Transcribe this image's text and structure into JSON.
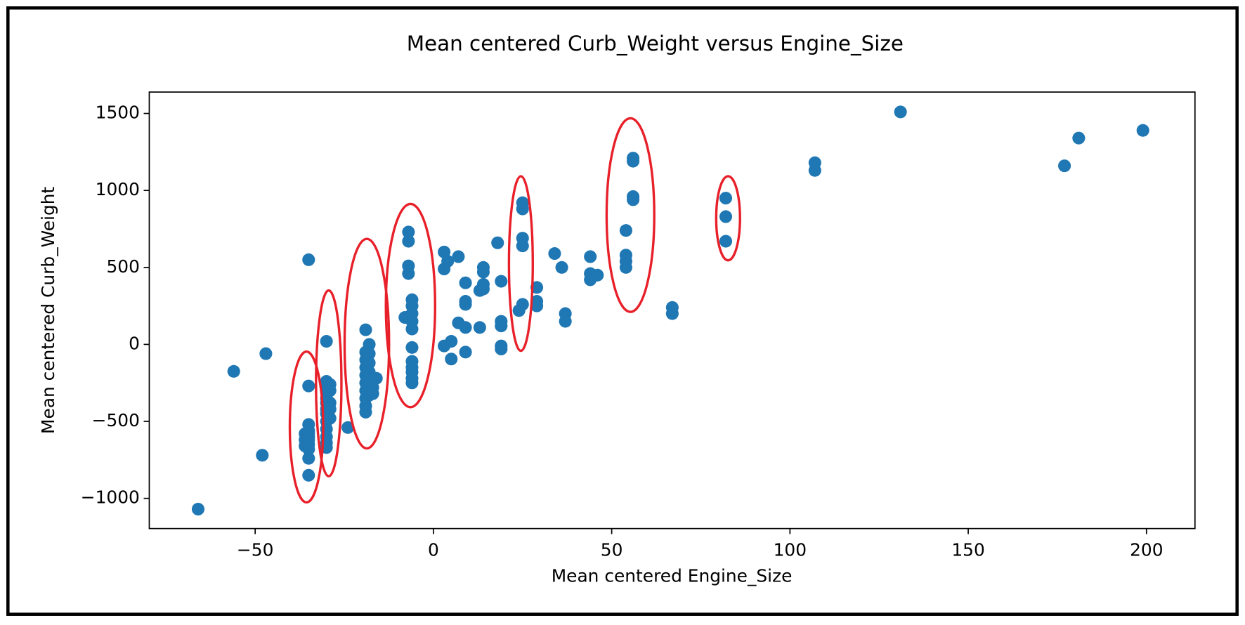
{
  "chart_data": {
    "type": "scatter",
    "title": "Mean centered Curb_Weight versus Engine_Size",
    "x_label": "Mean centered Engine_Size",
    "y_label": "Mean centered Curb_Weight",
    "color": "#1f77b4",
    "x": [
      -66,
      -56,
      -47,
      -48,
      -35,
      -35,
      -35,
      -35,
      -35,
      -35,
      -35,
      -35,
      -35,
      -35,
      -35,
      -36,
      -36,
      -36,
      -30,
      -30,
      -30,
      -30,
      -30,
      -30,
      -30,
      -30,
      -30,
      -30,
      -30,
      -30,
      -30,
      -30,
      -29,
      -29,
      -29,
      -29,
      -29,
      -24,
      -19,
      -19,
      -19,
      -19,
      -19,
      -19,
      -19,
      -19,
      -19,
      -19,
      -18,
      -18,
      -18,
      -18,
      -18,
      -18,
      -18,
      -17,
      -17,
      -17,
      -16,
      -7,
      -7,
      -7,
      -7,
      -8,
      -6,
      -6,
      -6,
      -6,
      -6,
      -6,
      -6,
      -6,
      -6,
      -6,
      -6,
      3,
      3,
      4,
      3,
      5,
      5,
      7,
      7,
      9,
      9,
      9,
      9,
      9,
      13,
      13,
      14,
      14,
      14,
      14,
      18,
      19,
      19,
      19,
      19,
      19,
      24,
      25,
      25,
      25,
      25,
      25,
      29,
      29,
      29,
      34,
      36,
      37,
      37,
      44,
      44,
      44,
      46,
      54,
      54,
      54,
      54,
      56,
      56,
      56,
      56,
      67,
      67,
      82,
      82,
      82,
      107,
      107,
      131,
      177,
      181,
      199
    ],
    "values": [
      -1070,
      -175,
      -60,
      -720,
      550,
      -270,
      -520,
      -560,
      -580,
      -600,
      -620,
      -650,
      -680,
      -740,
      -850,
      -580,
      -620,
      -660,
      20,
      -240,
      -260,
      -280,
      -300,
      -350,
      -380,
      -420,
      -450,
      -500,
      -550,
      -600,
      -640,
      -670,
      -260,
      -300,
      -380,
      -420,
      -480,
      -540,
      95,
      -50,
      -100,
      -150,
      -200,
      -250,
      -300,
      -350,
      -400,
      -440,
      0,
      -60,
      -120,
      -180,
      -220,
      -270,
      -330,
      -220,
      -280,
      -320,
      -220,
      730,
      670,
      510,
      460,
      175,
      290,
      250,
      200,
      150,
      100,
      -20,
      -110,
      -150,
      -180,
      -220,
      -250,
      600,
      490,
      540,
      -10,
      20,
      -95,
      570,
      140,
      400,
      280,
      260,
      110,
      -50,
      110,
      350,
      500,
      470,
      390,
      360,
      660,
      410,
      150,
      120,
      -10,
      -30,
      220,
      260,
      920,
      880,
      690,
      640,
      370,
      280,
      250,
      590,
      500,
      200,
      150,
      570,
      460,
      420,
      450,
      740,
      580,
      540,
      500,
      1210,
      1190,
      960,
      940,
      240,
      200,
      950,
      830,
      670,
      1180,
      1130,
      1510,
      1160,
      1340,
      1390
    ],
    "xlim": [
      -79.7,
      213.6
    ],
    "ylim": [
      -1196,
      1639
    ],
    "xticks": [
      {
        "value": -50,
        "label": "−50"
      },
      0,
      50,
      100,
      150,
      200
    ],
    "yticks": [
      {
        "value": -1000,
        "label": "−1000"
      },
      {
        "value": -500,
        "label": "−500"
      },
      0,
      500,
      1000,
      1500
    ]
  }
}
